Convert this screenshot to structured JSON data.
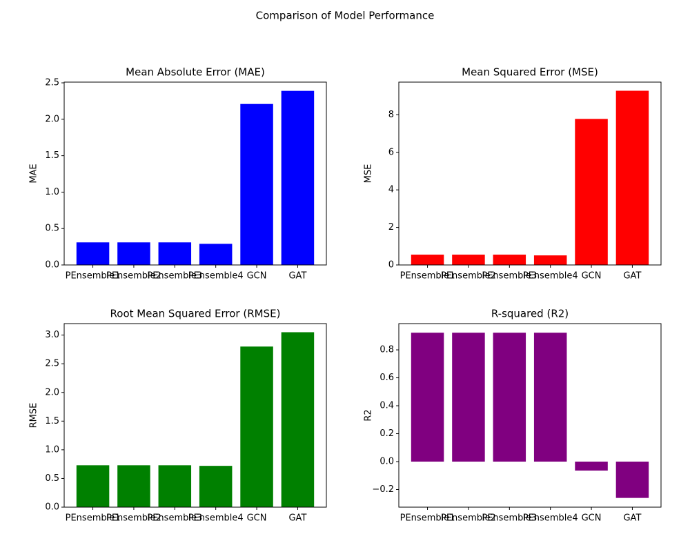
{
  "title": "Comparison of Model Performance",
  "chart_data": [
    {
      "type": "bar",
      "title": "Mean Absolute Error (MAE)",
      "ylabel": "MAE",
      "categories": [
        "PEnsemble1",
        "PEnsemble2",
        "PEnsemble3",
        "PEnsemble4",
        "GCN",
        "GAT"
      ],
      "values": [
        0.31,
        0.31,
        0.31,
        0.29,
        2.21,
        2.39
      ],
      "color": "#0000ff",
      "ylim": [
        0,
        2.51
      ],
      "yticks": [
        {
          "value": 0,
          "label": "0.0"
        },
        0.5,
        {
          "value": 1,
          "label": "1.0"
        },
        1.5,
        {
          "value": 2,
          "label": "2.0"
        },
        2.5
      ]
    },
    {
      "type": "bar",
      "title": "Mean Squared Error (MSE)",
      "ylabel": "MSE",
      "categories": [
        "PEnsemble1",
        "PEnsemble2",
        "PEnsemble3",
        "PEnsemble4",
        "GCN",
        "GAT"
      ],
      "values": [
        0.55,
        0.55,
        0.55,
        0.51,
        7.78,
        9.28
      ],
      "color": "#ff0000",
      "ylim": [
        0,
        9.74
      ],
      "yticks": [
        0,
        2,
        4,
        6,
        8
      ]
    },
    {
      "type": "bar",
      "title": "Root Mean Squared Error (RMSE)",
      "ylabel": "RMSE",
      "categories": [
        "PEnsemble1",
        "PEnsemble2",
        "PEnsemble3",
        "PEnsemble4",
        "GCN",
        "GAT"
      ],
      "values": [
        0.73,
        0.73,
        0.73,
        0.72,
        2.8,
        3.05
      ],
      "color": "#008000",
      "ylim": [
        0,
        3.2
      ],
      "yticks": [
        {
          "value": 0,
          "label": "0.0"
        },
        0.5,
        {
          "value": 1,
          "label": "1.0"
        },
        1.5,
        {
          "value": 2,
          "label": "2.0"
        },
        2.5,
        {
          "value": 3,
          "label": "3.0"
        }
      ]
    },
    {
      "type": "bar",
      "title": "R-squared (R2)",
      "ylabel": "R2",
      "categories": [
        "PEnsemble1",
        "PEnsemble2",
        "PEnsemble3",
        "PEnsemble4",
        "GCN",
        "GAT"
      ],
      "values": [
        0.923,
        0.923,
        0.923,
        0.923,
        -0.064,
        -0.26
      ],
      "color": "#800080",
      "ylim": [
        -0.326,
        0.988
      ],
      "yticks": [
        {
          "value": -0.2,
          "label": "−0.2"
        },
        {
          "value": 0,
          "label": "0.0"
        },
        0.2,
        0.4,
        0.6,
        0.8
      ]
    }
  ]
}
